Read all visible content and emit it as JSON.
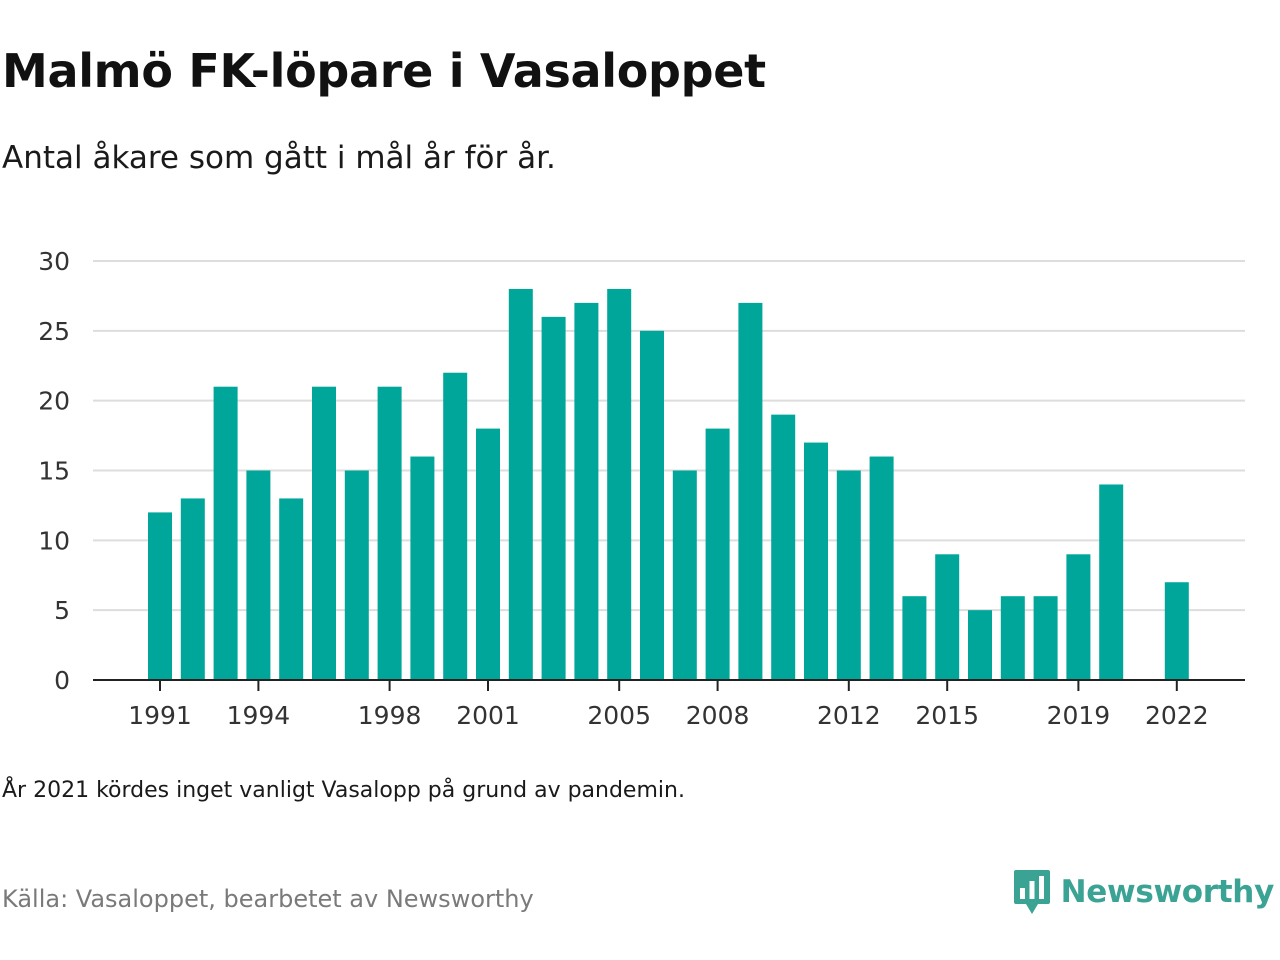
{
  "title": "Malmö FK-löpare i Vasaloppet",
  "subtitle": "Antal åkare som gått i mål år för år.",
  "note": "År 2021 kördes inget vanligt Vasalopp på grund av pandemin.",
  "source": "Källa: Vasaloppet, bearbetet av Newsworthy",
  "brand": {
    "name": "Newsworthy",
    "color": "#3aa393",
    "icon": "bar-chart-speech-bubble-icon"
  },
  "colors": {
    "bar": "#00a69a",
    "grid": "#dddddd",
    "axis": "#222222"
  },
  "chart_data": {
    "type": "bar",
    "title": "",
    "xlabel": "",
    "ylabel": "",
    "ylim": [
      0,
      30
    ],
    "yticks": [
      0,
      5,
      10,
      15,
      20,
      25,
      30
    ],
    "xtick_labels": [
      1991,
      1994,
      1998,
      2001,
      2005,
      2008,
      2012,
      2015,
      2019,
      2022
    ],
    "grid": "horizontal",
    "categories": [
      1991,
      1992,
      1993,
      1994,
      1995,
      1996,
      1997,
      1998,
      1999,
      2000,
      2001,
      2002,
      2003,
      2004,
      2005,
      2006,
      2007,
      2008,
      2009,
      2010,
      2011,
      2012,
      2013,
      2014,
      2015,
      2016,
      2017,
      2018,
      2019,
      2020,
      2021,
      2022
    ],
    "values": [
      12,
      13,
      21,
      15,
      13,
      21,
      15,
      21,
      16,
      22,
      18,
      28,
      26,
      27,
      28,
      25,
      15,
      18,
      27,
      19,
      17,
      15,
      16,
      6,
      9,
      5,
      6,
      6,
      9,
      14,
      null,
      7
    ]
  }
}
